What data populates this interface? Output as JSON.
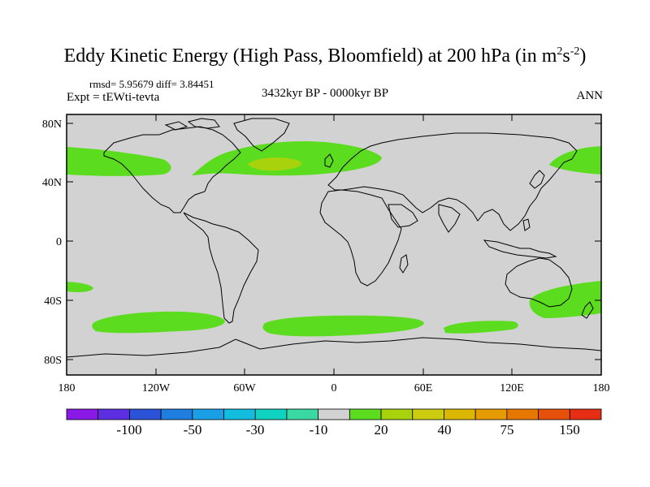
{
  "title": {
    "main": "Eddy Kinetic Energy (High Pass, Bloomfield) at 200 hPa (in m",
    "sup1": "2",
    "mid": "s",
    "sup2": "-2",
    "end": ")"
  },
  "stats": "rmsd= 5.95679 diff= 3.84451",
  "expt": "Expt = tEWti-tevta",
  "period": "3432kyr BP - 0000kyr BP",
  "season": "ANN",
  "lat_ticks": [
    "80N",
    "40N",
    "0",
    "40S",
    "80S"
  ],
  "lon_ticks": [
    "180",
    "120W",
    "60W",
    "0",
    "60E",
    "120E",
    "180"
  ],
  "colorbar": {
    "colors": [
      "#8a18e6",
      "#5e2ee3",
      "#2c52d8",
      "#1f7ee0",
      "#1a9ee6",
      "#12bde0",
      "#10d2c0",
      "#3ad9a4",
      "#d2d2d2",
      "#5cdc1e",
      "#a8d20c",
      "#cdcd10",
      "#dcb700",
      "#e69b00",
      "#e67800",
      "#e6500a",
      "#e62e14"
    ],
    "labels": [
      "-100",
      "-50",
      "-30",
      "-10",
      "20",
      "40",
      "75",
      "150"
    ]
  },
  "map_colors": {
    "ocean": "#d2d2d2",
    "positive_low": "#5cdc1e",
    "positive_mid": "#a8d20c",
    "coast": "#000000"
  }
}
